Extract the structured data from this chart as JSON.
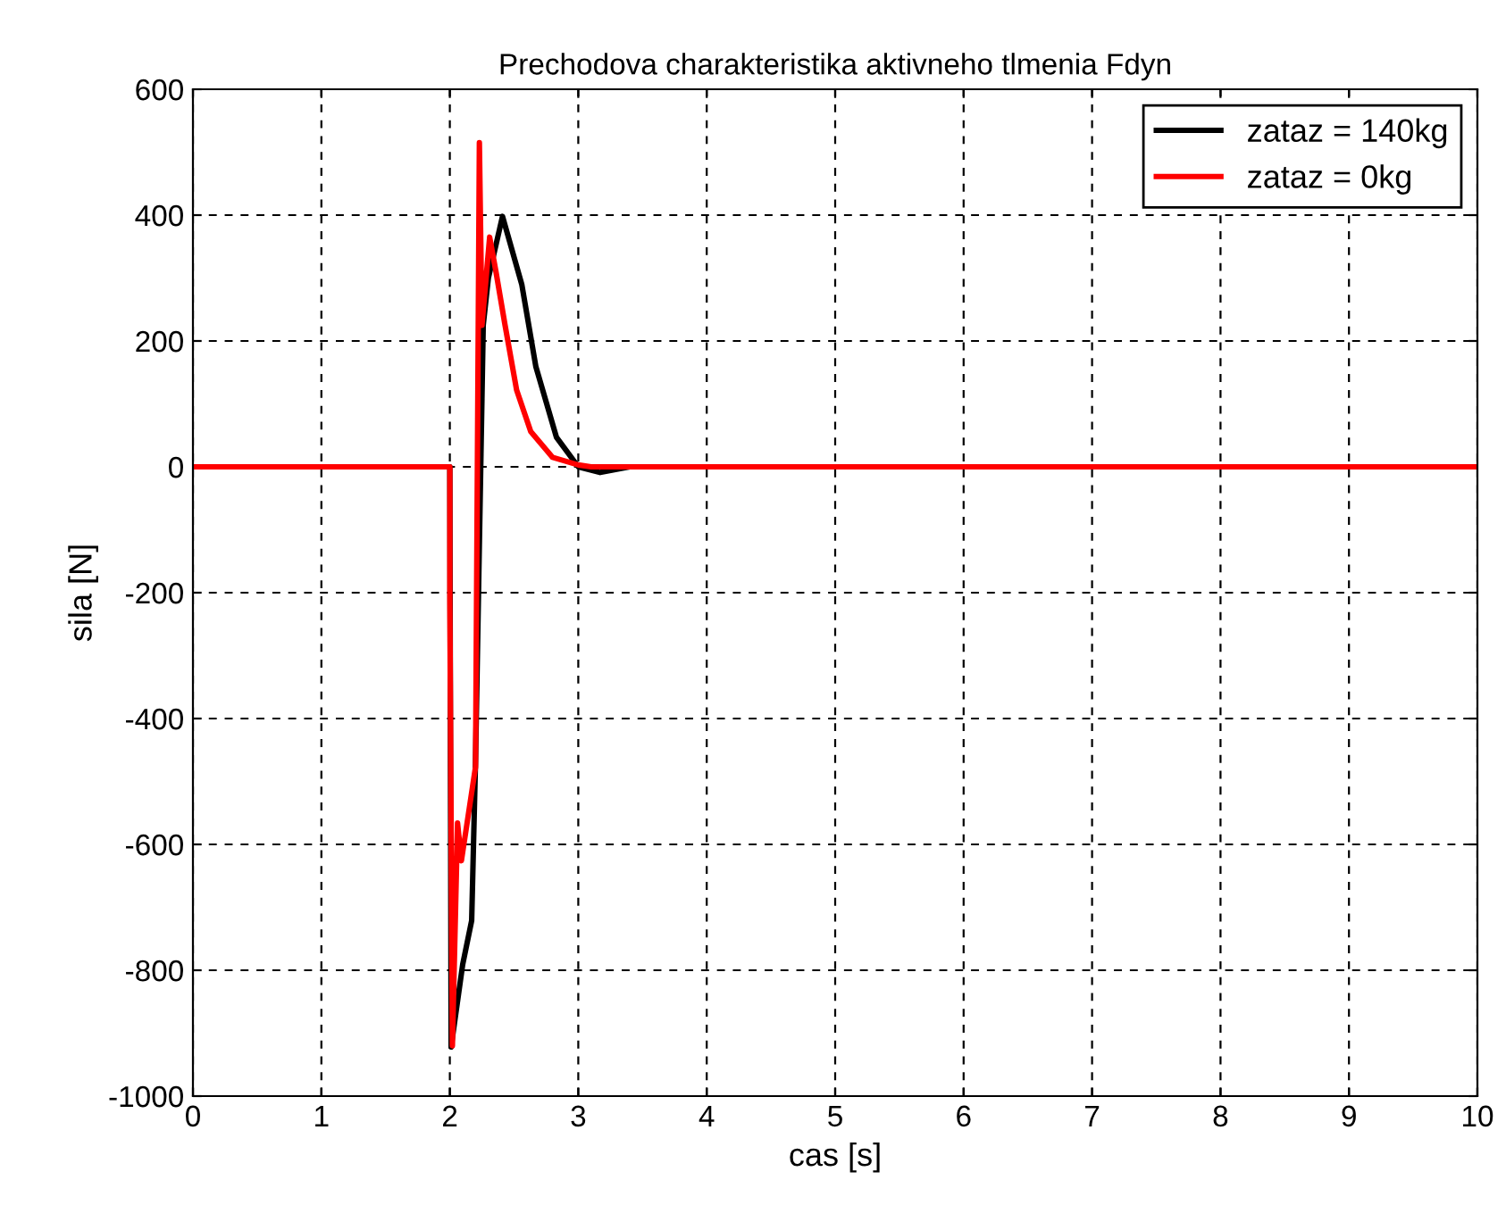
{
  "chart_data": {
    "type": "line",
    "title": "Prechodova charakteristika aktivneho tlmenia Fdyn",
    "xlabel": "cas [s]",
    "ylabel": "sila [N]",
    "series": [
      {
        "name": "zataz = 140kg",
        "color": "#000000",
        "x": [
          0,
          2.0,
          2.01,
          2.1,
          2.17,
          2.2,
          2.25,
          2.26,
          2.3,
          2.41,
          2.56,
          2.67,
          2.83,
          3.0,
          3.17,
          3.4,
          10
        ],
        "values": [
          0,
          0,
          -922,
          -791,
          -721,
          -468,
          108,
          225,
          300,
          398,
          290,
          159,
          47,
          0,
          -9,
          0,
          0
        ]
      },
      {
        "name": "zataz = 0kg",
        "color": "#ff0000",
        "x": [
          0,
          2.0,
          2.0,
          2.02,
          2.06,
          2.09,
          2.2,
          2.23,
          2.25,
          2.31,
          2.36,
          2.43,
          2.52,
          2.63,
          2.8,
          3.0,
          3.1,
          10
        ],
        "values": [
          0,
          0,
          -215,
          -920,
          -566,
          -626,
          -477,
          515,
          225,
          365,
          309,
          225,
          122,
          56,
          15,
          3,
          0,
          0
        ]
      }
    ],
    "xlim": [
      0,
      10
    ],
    "xticks": [
      0,
      1,
      2,
      3,
      4,
      5,
      6,
      7,
      8,
      9,
      10
    ],
    "ylim": [
      -1000,
      600
    ],
    "yticks": [
      -1000,
      -800,
      -600,
      -400,
      -200,
      0,
      200,
      400,
      600
    ],
    "grid": true,
    "legend": "top right",
    "line_style": "solid",
    "marker": "none"
  }
}
